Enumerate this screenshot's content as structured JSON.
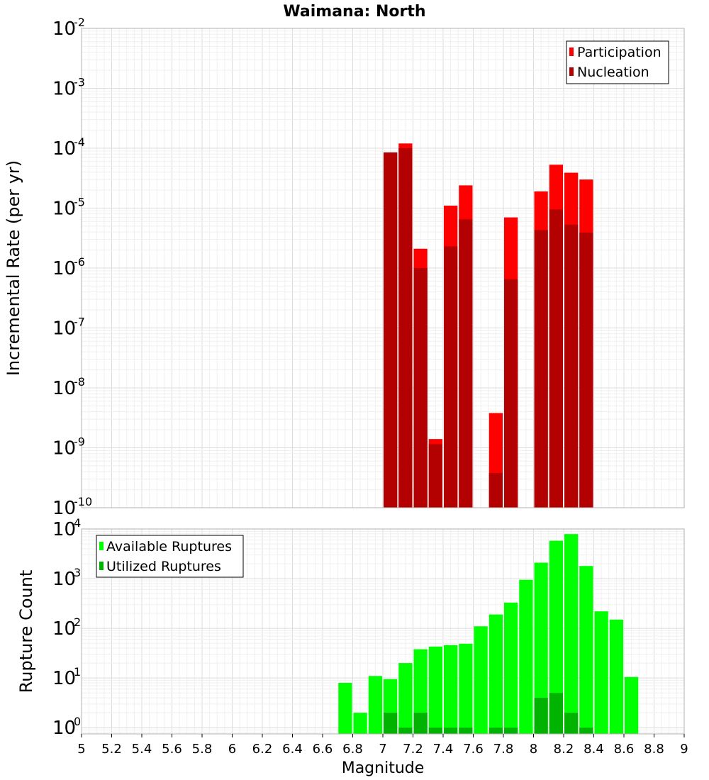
{
  "title": "Waimana: North",
  "chart_data": [
    {
      "type": "bar",
      "title": "Waimana: North",
      "ylabel": "Incremental Rate (per yr)",
      "xlabel": "",
      "scale": "log",
      "xlim": [
        5,
        9
      ],
      "ylim_exp": [
        -10,
        -2
      ],
      "grid": true,
      "legend_position": "top-right",
      "bar_width": 0.1,
      "x": [
        7.05,
        7.15,
        7.25,
        7.35,
        7.45,
        7.55,
        7.75,
        7.85,
        8.05,
        8.15,
        8.25,
        8.35
      ],
      "series": [
        {
          "name": "Participation",
          "color": "#ff0000",
          "values": [
            8.5e-05,
            0.00012,
            2.1e-06,
            1.4e-09,
            1.1e-05,
            2.4e-05,
            3.8e-09,
            7e-06,
            1.9e-05,
            5.3e-05,
            3.9e-05,
            3e-05
          ]
        },
        {
          "name": "Nucleation",
          "color": "#b30000",
          "values": [
            8.5e-05,
            0.0001,
            1e-06,
            1.15e-09,
            2.3e-06,
            6.5e-06,
            3.8e-10,
            6.5e-07,
            4.3e-06,
            9.5e-06,
            5.3e-06,
            3.9e-06
          ]
        }
      ]
    },
    {
      "type": "bar",
      "title": "",
      "ylabel": "Rupture Count",
      "xlabel": "Magnitude",
      "scale": "log",
      "xlim": [
        5,
        9
      ],
      "ylim_exp": [
        0,
        4
      ],
      "y_floor": 0.75,
      "grid": true,
      "legend_position": "top-left",
      "bar_width": 0.1,
      "xticks": [
        "5",
        "5.2",
        "5.4",
        "5.6",
        "5.8",
        "6",
        "6.2",
        "6.4",
        "6.6",
        "6.8",
        "7",
        "7.2",
        "7.4",
        "7.6",
        "7.8",
        "8",
        "8.2",
        "8.4",
        "8.6",
        "8.8",
        "9"
      ],
      "x": [
        6.75,
        6.85,
        6.95,
        7.05,
        7.15,
        7.25,
        7.35,
        7.45,
        7.55,
        7.65,
        7.75,
        7.85,
        7.95,
        8.05,
        8.15,
        8.25,
        8.35,
        8.45,
        8.55,
        8.65
      ],
      "series": [
        {
          "name": "Available Ruptures",
          "color": "#00ff00",
          "values": [
            8,
            2,
            11,
            9.5,
            20,
            38,
            43,
            46,
            49,
            110,
            190,
            330,
            950,
            2100,
            5800,
            7900,
            1800,
            220,
            150,
            10.5
          ]
        },
        {
          "name": "Utilized Ruptures",
          "color": "#00b300",
          "values": [
            0,
            0,
            0,
            2,
            1,
            2,
            1,
            1,
            1,
            0,
            1,
            1,
            0,
            4,
            5,
            2,
            1,
            0,
            0,
            0
          ]
        }
      ]
    }
  ]
}
